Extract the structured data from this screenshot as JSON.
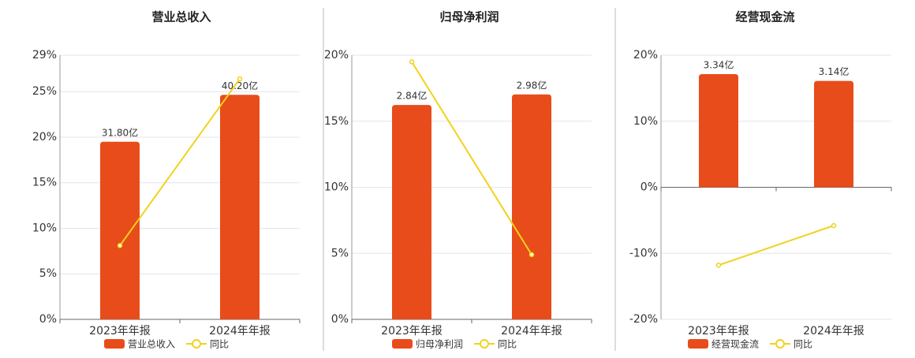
{
  "chart_data": [
    {
      "type": "bar",
      "title": "营业总收入",
      "categories": [
        "2023年年报",
        "2024年年报"
      ],
      "series": [
        {
          "name": "营业总收入",
          "color": "#e84c1a",
          "values": [
            31.8,
            40.2
          ],
          "value_labels": [
            "31.80亿",
            "40.20亿"
          ],
          "axis": "y2"
        },
        {
          "name": "同比",
          "color": "#f2d21b",
          "type": "line",
          "values": [
            8.1,
            26.4
          ]
        }
      ],
      "ylim": [
        0,
        29
      ],
      "yticks": [
        {
          "value": 0,
          "label": "0%"
        },
        {
          "value": 5,
          "label": "5%"
        },
        {
          "value": 10,
          "label": "10%"
        },
        {
          "value": 15,
          "label": "15%"
        },
        {
          "value": 20,
          "label": "20%"
        },
        {
          "value": 25,
          "label": "25%"
        },
        {
          "value": 29,
          "label": "29%"
        }
      ],
      "y2lim": [
        0,
        47.3
      ],
      "grid": true
    },
    {
      "type": "bar",
      "title": "归母净利润",
      "categories": [
        "2023年年报",
        "2024年年报"
      ],
      "series": [
        {
          "name": "归母净利润",
          "color": "#e84c1a",
          "values": [
            2.84,
            2.98
          ],
          "value_labels": [
            "2.84亿",
            "2.98亿"
          ],
          "axis": "y2"
        },
        {
          "name": "同比",
          "color": "#f2d21b",
          "type": "line",
          "values": [
            19.5,
            4.9
          ]
        }
      ],
      "ylim": [
        0,
        20
      ],
      "yticks": [
        {
          "value": 0,
          "label": "0%"
        },
        {
          "value": 5,
          "label": "5%"
        },
        {
          "value": 10,
          "label": "10%"
        },
        {
          "value": 15,
          "label": "15%"
        },
        {
          "value": 20,
          "label": "20%"
        }
      ],
      "y2lim": [
        0,
        3.5
      ],
      "grid": true
    },
    {
      "type": "bar",
      "title": "经营现金流",
      "categories": [
        "2023年年报",
        "2024年年报"
      ],
      "series": [
        {
          "name": "经营现金流",
          "color": "#e84c1a",
          "values": [
            3.34,
            3.14
          ],
          "value_labels": [
            "3.34亿",
            "3.14亿"
          ],
          "axis": "y2"
        },
        {
          "name": "同比",
          "color": "#f2d21b",
          "type": "line",
          "values": [
            -11.8,
            -5.8
          ]
        }
      ],
      "ylim": [
        -20,
        20
      ],
      "yticks": [
        {
          "value": -20,
          "label": "-20%"
        },
        {
          "value": -10,
          "label": "-10%"
        },
        {
          "value": 0,
          "label": "0%"
        },
        {
          "value": 10,
          "label": "10%"
        },
        {
          "value": 20,
          "label": "20%"
        }
      ],
      "y2lim": [
        -3.9,
        3.9
      ],
      "grid": true
    }
  ]
}
